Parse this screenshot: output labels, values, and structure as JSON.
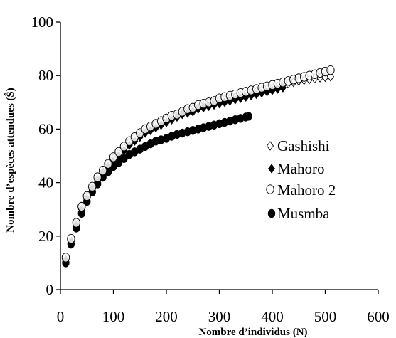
{
  "chart_data": {
    "type": "scatter",
    "title": "",
    "xlabel": "Nombre d’individus (N)",
    "ylabel": "Nombre d’espèces attendues (Ŝ)",
    "xlim": [
      0,
      600
    ],
    "ylim": [
      0,
      100
    ],
    "xticks": [
      "0",
      "100",
      "200",
      "300",
      "400",
      "500",
      "600"
    ],
    "yticks": [
      "0",
      "20",
      "40",
      "60",
      "80",
      "100"
    ],
    "grid": false,
    "legend_position": "right",
    "series": [
      {
        "name": "Gashishi",
        "marker": "diamond-open",
        "points": [
          [
            10,
            11
          ],
          [
            20,
            18
          ],
          [
            30,
            25
          ],
          [
            40,
            31
          ],
          [
            50,
            35
          ],
          [
            60,
            38
          ],
          [
            70,
            41
          ],
          [
            80,
            44
          ],
          [
            90,
            47
          ],
          [
            100,
            49
          ],
          [
            110,
            51
          ],
          [
            120,
            53
          ],
          [
            130,
            55
          ],
          [
            140,
            57
          ],
          [
            150,
            58
          ],
          [
            160,
            59.5
          ],
          [
            170,
            61
          ],
          [
            180,
            62
          ],
          [
            190,
            63
          ],
          [
            200,
            64
          ],
          [
            210,
            64.5
          ],
          [
            220,
            65.5
          ],
          [
            230,
            66
          ],
          [
            240,
            67
          ],
          [
            250,
            67.5
          ],
          [
            260,
            68
          ],
          [
            270,
            68.5
          ],
          [
            280,
            69.5
          ],
          [
            290,
            70
          ],
          [
            300,
            70.5
          ],
          [
            310,
            71
          ],
          [
            320,
            71.5
          ],
          [
            330,
            72
          ],
          [
            340,
            72.5
          ],
          [
            350,
            73
          ],
          [
            360,
            73.5
          ],
          [
            370,
            74
          ],
          [
            380,
            74.5
          ],
          [
            390,
            75
          ],
          [
            400,
            75.5
          ],
          [
            410,
            76
          ],
          [
            420,
            76.5
          ],
          [
            430,
            77
          ],
          [
            440,
            77.5
          ],
          [
            450,
            78
          ],
          [
            460,
            78.3
          ],
          [
            470,
            78.6
          ],
          [
            480,
            78.9
          ],
          [
            490,
            79.2
          ],
          [
            500,
            79.4
          ],
          [
            510,
            79.6
          ]
        ]
      },
      {
        "name": "Mahoro",
        "marker": "diamond-filled",
        "points": [
          [
            10,
            11
          ],
          [
            20,
            18
          ],
          [
            30,
            24
          ],
          [
            40,
            30
          ],
          [
            50,
            34
          ],
          [
            60,
            37.5
          ],
          [
            70,
            40.5
          ],
          [
            80,
            43.5
          ],
          [
            90,
            46
          ],
          [
            100,
            48
          ],
          [
            110,
            50
          ],
          [
            120,
            52
          ],
          [
            130,
            54
          ],
          [
            140,
            55.5
          ],
          [
            150,
            57
          ],
          [
            160,
            58.5
          ],
          [
            170,
            59.5
          ],
          [
            180,
            60.5
          ],
          [
            190,
            61.5
          ],
          [
            200,
            62.5
          ],
          [
            210,
            63.5
          ],
          [
            220,
            64.5
          ],
          [
            230,
            65.5
          ],
          [
            240,
            66
          ],
          [
            250,
            66.5
          ],
          [
            260,
            67.5
          ],
          [
            270,
            68
          ],
          [
            280,
            68.5
          ],
          [
            290,
            69
          ],
          [
            300,
            69.5
          ],
          [
            310,
            70
          ],
          [
            320,
            70.5
          ],
          [
            330,
            71
          ],
          [
            340,
            71.5
          ],
          [
            350,
            72
          ],
          [
            360,
            72.5
          ],
          [
            370,
            73
          ],
          [
            380,
            73.5
          ],
          [
            390,
            74
          ],
          [
            400,
            74.5
          ],
          [
            410,
            75
          ],
          [
            420,
            75.5
          ]
        ]
      },
      {
        "name": "Mahoro 2",
        "marker": "circle-open",
        "points": [
          [
            10,
            12
          ],
          [
            20,
            19
          ],
          [
            30,
            25
          ],
          [
            40,
            31
          ],
          [
            50,
            35
          ],
          [
            60,
            38.5
          ],
          [
            70,
            42
          ],
          [
            80,
            44.5
          ],
          [
            90,
            47
          ],
          [
            100,
            49.5
          ],
          [
            110,
            51.5
          ],
          [
            120,
            53.5
          ],
          [
            130,
            55.5
          ],
          [
            140,
            57
          ],
          [
            150,
            58.5
          ],
          [
            160,
            60
          ],
          [
            170,
            61
          ],
          [
            180,
            62
          ],
          [
            190,
            63
          ],
          [
            200,
            64
          ],
          [
            210,
            65
          ],
          [
            220,
            65.5
          ],
          [
            230,
            66.5
          ],
          [
            240,
            67.5
          ],
          [
            250,
            68
          ],
          [
            260,
            69
          ],
          [
            270,
            69.5
          ],
          [
            280,
            70
          ],
          [
            290,
            70.5
          ],
          [
            300,
            71.5
          ],
          [
            310,
            72
          ],
          [
            320,
            72.5
          ],
          [
            330,
            73
          ],
          [
            340,
            73.5
          ],
          [
            350,
            74
          ],
          [
            360,
            74.5
          ],
          [
            370,
            75
          ],
          [
            380,
            75.5
          ],
          [
            390,
            76
          ],
          [
            400,
            76.5
          ],
          [
            410,
            77
          ],
          [
            420,
            77.5
          ],
          [
            430,
            78
          ],
          [
            440,
            78.5
          ],
          [
            450,
            79
          ],
          [
            460,
            79.5
          ],
          [
            470,
            80
          ],
          [
            480,
            80.5
          ],
          [
            490,
            81
          ],
          [
            500,
            81.5
          ],
          [
            510,
            82
          ]
        ]
      },
      {
        "name": "Musmba",
        "marker": "circle-filled",
        "points": [
          [
            10,
            10
          ],
          [
            20,
            17
          ],
          [
            30,
            23
          ],
          [
            40,
            28.5
          ],
          [
            50,
            33
          ],
          [
            60,
            36.5
          ],
          [
            70,
            39.5
          ],
          [
            80,
            42
          ],
          [
            90,
            44
          ],
          [
            100,
            46
          ],
          [
            110,
            47.5
          ],
          [
            120,
            49
          ],
          [
            130,
            50.5
          ],
          [
            140,
            51.5
          ],
          [
            150,
            52.5
          ],
          [
            160,
            53.5
          ],
          [
            170,
            54.5
          ],
          [
            180,
            55.5
          ],
          [
            190,
            56
          ],
          [
            200,
            56.5
          ],
          [
            210,
            57.3
          ],
          [
            220,
            58
          ],
          [
            230,
            58.5
          ],
          [
            240,
            59
          ],
          [
            250,
            59.5
          ],
          [
            260,
            60
          ],
          [
            270,
            60.5
          ],
          [
            280,
            61
          ],
          [
            290,
            61.5
          ],
          [
            300,
            62
          ],
          [
            310,
            62.5
          ],
          [
            320,
            63
          ],
          [
            330,
            63.5
          ],
          [
            340,
            64
          ],
          [
            350,
            64.5
          ],
          [
            355,
            64.8
          ]
        ]
      }
    ]
  }
}
